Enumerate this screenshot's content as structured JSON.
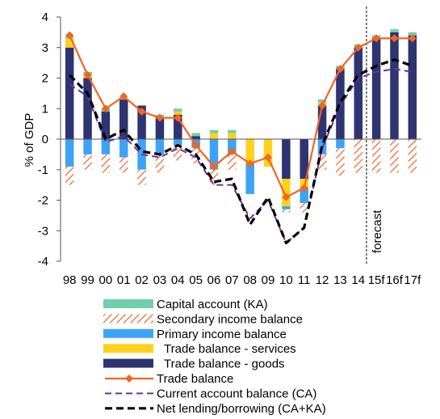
{
  "chart_data": {
    "type": "bar",
    "ylabel": "% of GDP",
    "ylim": [
      -4,
      4
    ],
    "yticks": [
      4,
      3,
      2,
      1,
      0,
      -1,
      -2,
      -3,
      -4
    ],
    "categories": [
      "98",
      "99",
      "00",
      "01",
      "02",
      "03",
      "04",
      "05",
      "06",
      "07",
      "08",
      "09",
      "10",
      "11",
      "12",
      "13",
      "14",
      "15f",
      "16f",
      "17f"
    ],
    "forecast_label": "forecast",
    "forecast_start": "15f",
    "colors": {
      "capital_account": "#6fcfaa",
      "secondary_income": "#f26a35",
      "primary_income": "#3fa3f5",
      "trade_services": "#ffd21f",
      "trade_goods": "#2e3470",
      "trade_balance": "#f26522",
      "current_account": "#7030a0",
      "net_lending": "#000000"
    },
    "series": [
      {
        "name": "Capital account (KA)",
        "key": "capital_account",
        "kind": "stack",
        "values": [
          0.1,
          0.1,
          0.1,
          0.0,
          0.0,
          0.1,
          0.1,
          0.1,
          0.1,
          0.1,
          0.0,
          0.0,
          0.0,
          0.0,
          0.1,
          0.1,
          0.1,
          0.1,
          0.1,
          0.1
        ]
      },
      {
        "name": "Secondary income balance",
        "key": "secondary_income",
        "kind": "stack",
        "values": [
          -0.6,
          -0.5,
          -0.6,
          -0.5,
          -0.5,
          -0.6,
          -0.5,
          -0.5,
          -0.5,
          -0.5,
          0.0,
          0.0,
          -0.1,
          -0.3,
          -0.5,
          -0.9,
          -1.1,
          -1.1,
          -1.1,
          -1.1
        ]
      },
      {
        "name": "Primary income balance",
        "key": "primary_income",
        "kind": "stack",
        "values": [
          -0.9,
          -0.5,
          -0.5,
          -0.6,
          -1.0,
          -0.5,
          -0.2,
          -0.3,
          -1.0,
          -0.5,
          -1.0,
          0.0,
          -0.1,
          -0.5,
          -0.5,
          -0.3,
          0.0,
          0.0,
          0.0,
          0.0
        ]
      },
      {
        "name": "Trade balance - services",
        "key": "trade_services",
        "kind": "stack",
        "values": [
          0.3,
          0.1,
          0.0,
          0.0,
          0.0,
          0.0,
          0.1,
          0.0,
          0.2,
          0.2,
          -0.8,
          -0.9,
          -0.9,
          -0.3,
          0.1,
          0.0,
          0.0,
          0.0,
          0.0,
          0.0
        ]
      },
      {
        "name": "Trade balance - goods",
        "key": "trade_goods",
        "kind": "stack",
        "values": [
          3.0,
          2.0,
          0.9,
          1.3,
          1.1,
          0.7,
          0.8,
          0.1,
          0.0,
          0.0,
          0.0,
          0.0,
          -1.3,
          -1.3,
          1.1,
          2.3,
          3.0,
          3.3,
          3.5,
          3.4
        ]
      },
      {
        "name": "Trade balance",
        "key": "trade_balance",
        "kind": "line",
        "values": [
          3.4,
          2.1,
          1.0,
          1.4,
          0.9,
          0.7,
          0.7,
          -0.2,
          -0.9,
          -0.4,
          -0.8,
          -0.6,
          -1.9,
          -1.6,
          1.1,
          2.3,
          3.0,
          3.3,
          3.3,
          3.3
        ]
      },
      {
        "name": "Current account balance (CA)",
        "key": "current_account",
        "kind": "line",
        "values": [
          1.8,
          1.4,
          -0.1,
          0.1,
          -0.5,
          -0.6,
          -0.3,
          -0.6,
          -1.5,
          -1.5,
          -2.6,
          -2.0,
          -3.4,
          -2.9,
          -0.3,
          1.1,
          2.0,
          2.2,
          2.3,
          2.2
        ]
      },
      {
        "name": "Net lending/borrowing (CA+KA)",
        "key": "net_lending",
        "kind": "line",
        "values": [
          2.1,
          1.5,
          0.0,
          0.3,
          -0.4,
          -0.5,
          -0.2,
          -0.5,
          -1.4,
          -1.3,
          -2.8,
          -1.9,
          -3.4,
          -2.9,
          -0.2,
          1.2,
          2.1,
          2.4,
          2.6,
          2.4
        ]
      }
    ]
  }
}
